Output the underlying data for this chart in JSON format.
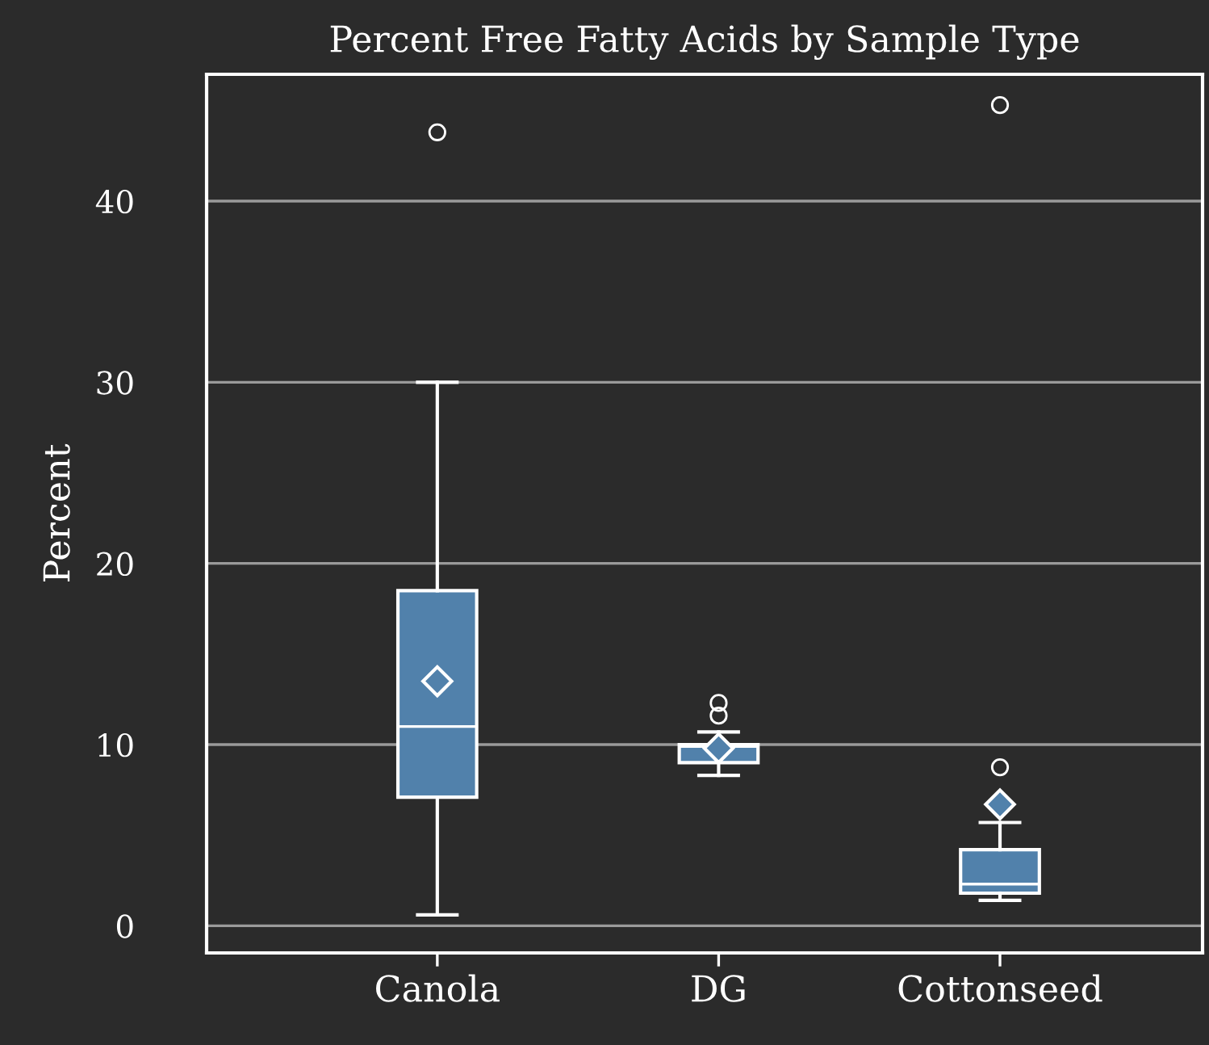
{
  "chart_data": {
    "type": "box",
    "title": "Percent Free Fatty Acids by Sample Type",
    "ylabel": "Percent",
    "categories": [
      "Canola",
      "DG",
      "Cottonseed"
    ],
    "color": "#5181ab",
    "boxes": [
      {
        "low": 0.6,
        "q1": 7.1,
        "median": 11.0,
        "q3": 18.5,
        "high": 30.0,
        "mean": 13.5,
        "outliers": [
          43.8
        ]
      },
      {
        "low": 8.3,
        "q1": 9.0,
        "median": 9.9,
        "q3": 10.0,
        "high": 10.7,
        "mean": 9.8,
        "outliers": [
          11.6,
          12.3
        ]
      },
      {
        "low": 1.4,
        "q1": 1.8,
        "median": 2.3,
        "q3": 4.2,
        "high": 5.7,
        "mean": 6.7,
        "outliers": [
          8.75,
          45.3
        ]
      }
    ],
    "ylim": [
      -1.5,
      47
    ],
    "yticks": [
      0,
      10,
      20,
      30,
      40
    ],
    "grid": "y",
    "marker": "diamond"
  }
}
